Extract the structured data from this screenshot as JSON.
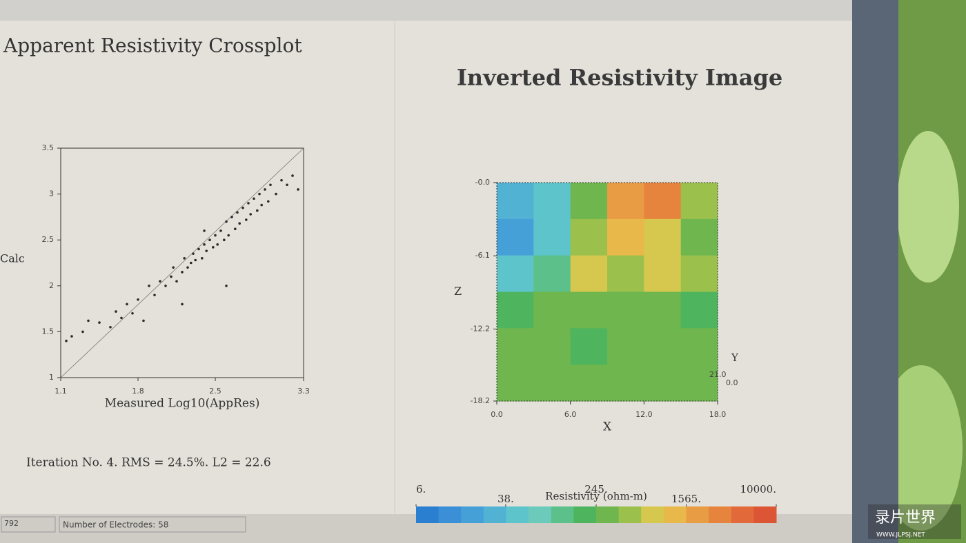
{
  "chart_data": [
    {
      "type": "scatter",
      "title": "Apparent Resistivity Crossplot",
      "x_label": "Measured Log10(AppRes)",
      "y_label": "Calc",
      "xlim": [
        1.1,
        3.3
      ],
      "ylim": [
        1,
        3.5
      ],
      "xticks": [
        1.1,
        1.8,
        2.5,
        3.3
      ],
      "yticks": [
        1,
        1.5,
        2,
        2.5,
        3,
        3.5
      ],
      "color": "#2a2a2a",
      "x": [
        1.15,
        1.2,
        1.3,
        1.35,
        1.45,
        1.55,
        1.6,
        1.65,
        1.7,
        1.75,
        1.8,
        1.85,
        1.9,
        1.95,
        2.0,
        2.05,
        2.1,
        2.12,
        2.15,
        2.2,
        2.22,
        2.25,
        2.28,
        2.3,
        2.32,
        2.35,
        2.38,
        2.4,
        2.42,
        2.45,
        2.48,
        2.5,
        2.52,
        2.55,
        2.58,
        2.6,
        2.62,
        2.65,
        2.68,
        2.7,
        2.72,
        2.75,
        2.78,
        2.8,
        2.82,
        2.85,
        2.88,
        2.9,
        2.92,
        2.95,
        2.98,
        3.0,
        3.05,
        3.1,
        3.15,
        3.2,
        3.25,
        2.6,
        2.2,
        2.4
      ],
      "y": [
        1.4,
        1.45,
        1.5,
        1.62,
        1.6,
        1.55,
        1.72,
        1.65,
        1.8,
        1.7,
        1.85,
        1.62,
        2.0,
        1.9,
        2.05,
        2.0,
        2.1,
        2.2,
        2.05,
        2.15,
        2.3,
        2.2,
        2.25,
        2.35,
        2.28,
        2.4,
        2.3,
        2.45,
        2.38,
        2.5,
        2.42,
        2.55,
        2.45,
        2.6,
        2.5,
        2.7,
        2.55,
        2.75,
        2.62,
        2.8,
        2.68,
        2.85,
        2.72,
        2.9,
        2.78,
        2.95,
        2.82,
        3.0,
        2.88,
        3.05,
        2.92,
        3.1,
        3.0,
        3.15,
        3.1,
        3.2,
        3.05,
        2.0,
        1.8,
        2.6
      ]
    },
    {
      "type": "heatmap",
      "title": "Inverted Resistivity Image",
      "x_label": "X",
      "y_label": "Z",
      "xlim": [
        0,
        18
      ],
      "ylim": [
        -18.2,
        0
      ],
      "xticks": [
        {
          "value": 0,
          "label": "0.0"
        },
        {
          "value": 6,
          "label": "6.0"
        },
        {
          "value": 12,
          "label": "12.0"
        },
        {
          "value": 18,
          "label": "18.0"
        }
      ],
      "yticks": [
        {
          "value": 0,
          "label": "-0.0"
        },
        -6.1,
        -12.2,
        -18.2
      ],
      "y3_label": "Y",
      "y3ticks": [
        {
          "value": 21,
          "label": "21.0"
        },
        {
          "value": 0,
          "label": "0.0"
        }
      ],
      "values": [
        [
          25,
          60,
          245,
          1800,
          2500,
          400
        ],
        [
          20,
          45,
          500,
          1200,
          900,
          300
        ],
        [
          40,
          150,
          700,
          600,
          700,
          600
        ],
        [
          200,
          245,
          250,
          260,
          250,
          240
        ],
        [
          250,
          245,
          240,
          245,
          250,
          245
        ],
        [
          245,
          245,
          245,
          245,
          245,
          245
        ]
      ],
      "colorbar": {
        "title": "Resistivity (ohm-m)",
        "log": true,
        "lim": [
          6,
          10000
        ],
        "ticks": [
          {
            "value": 6,
            "label": "6."
          },
          {
            "value": 38,
            "label": "38."
          },
          {
            "value": 245,
            "label": "245."
          },
          {
            "value": 1565,
            "label": "1565."
          },
          {
            "value": 10000,
            "label": "10000."
          }
        ],
        "colors": [
          "#2a7fd0",
          "#3a8fd6",
          "#46a0d8",
          "#52b2d4",
          "#5ec4cc",
          "#6ccabb",
          "#5cc08a",
          "#4fb45e",
          "#6fb64e",
          "#9cc04c",
          "#d6c84e",
          "#e8b84a",
          "#e89c44",
          "#e6843e",
          "#e26a3a",
          "#dc5636"
        ]
      }
    }
  ],
  "iteration": "Iteration No. 4.  RMS = 24.5%.  L2 = 22.6",
  "status_bar": [
    "792",
    "Number of Electrodes: 58"
  ],
  "watermark": {
    "name": "录片世界",
    "url": "WWW.JLPSJ.NET"
  }
}
